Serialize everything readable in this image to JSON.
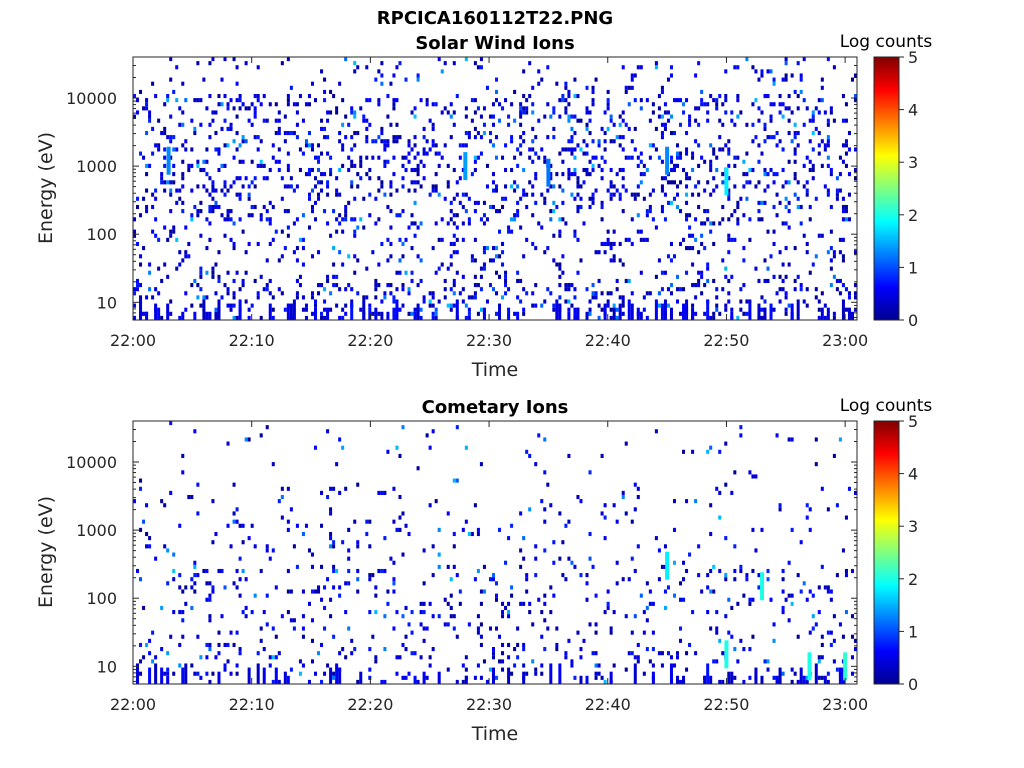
{
  "figure": {
    "title": "RPCICA160112T22.PNG"
  },
  "colorbar": {
    "label": "Log counts",
    "ticks": [
      0,
      1,
      2,
      3,
      4,
      5
    ],
    "colormap": "jet"
  },
  "chart_data": [
    {
      "type": "heatmap",
      "title": "Solar Wind Ions",
      "xlabel": "Time",
      "ylabel": "Energy (eV)",
      "x_ticks": [
        "22:00",
        "22:10",
        "22:20",
        "22:30",
        "22:40",
        "22:50",
        "23:00"
      ],
      "y_ticks": [
        "10",
        "100",
        "1000",
        "10000"
      ],
      "y_scale": "log",
      "y_range": [
        5.5,
        40000
      ],
      "x_range": [
        "22:00",
        "23:01"
      ],
      "z_label": "Log counts",
      "z_range": [
        0,
        5
      ],
      "description_values": {
        "background_level": "0-1 log counts scattered across 10 eV to 30000 eV",
        "peaks": [
          {
            "time": "22:03",
            "energy_eV": 1200,
            "log_counts": 1.3
          },
          {
            "time": "22:28",
            "energy_eV": 1000,
            "log_counts": 1.4
          },
          {
            "time": "22:35",
            "energy_eV": 800,
            "log_counts": 1.2
          },
          {
            "time": "22:45",
            "energy_eV": 1200,
            "log_counts": 1.3
          },
          {
            "time": "22:50",
            "energy_eV": 600,
            "log_counts": 1.8
          }
        ]
      }
    },
    {
      "type": "heatmap",
      "title": "Cometary Ions",
      "xlabel": "Time",
      "ylabel": "Energy (eV)",
      "x_ticks": [
        "22:00",
        "22:10",
        "22:20",
        "22:30",
        "22:40",
        "22:50",
        "23:00"
      ],
      "y_ticks": [
        "10",
        "100",
        "1000",
        "10000"
      ],
      "y_scale": "log",
      "y_range": [
        5.5,
        40000
      ],
      "x_range": [
        "22:00",
        "23:01"
      ],
      "z_label": "Log counts",
      "z_range": [
        0,
        5
      ],
      "description_values": {
        "background_level": "0-1 log counts, sparse above 1000 eV, denser below 500 eV",
        "peaks": [
          {
            "time": "22:45",
            "energy_eV": 300,
            "log_counts": 1.8
          },
          {
            "time": "22:50",
            "energy_eV": 15,
            "log_counts": 2.0
          },
          {
            "time": "22:53",
            "energy_eV": 150,
            "log_counts": 2.0
          },
          {
            "time": "22:57",
            "energy_eV": 10,
            "log_counts": 2.0
          },
          {
            "time": "23:00",
            "energy_eV": 10,
            "log_counts": 2.1
          }
        ]
      }
    }
  ]
}
